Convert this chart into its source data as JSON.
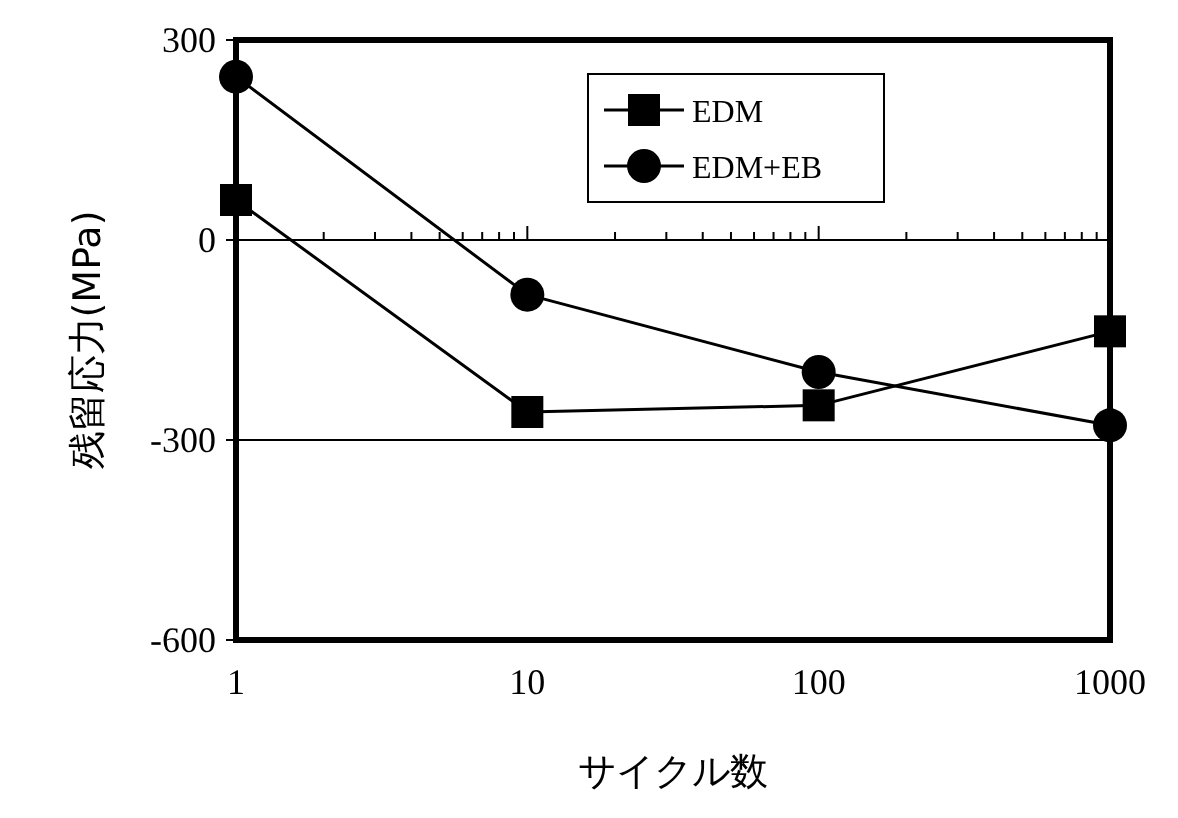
{
  "chart_data": {
    "type": "line",
    "xlabel": "サイクル数",
    "ylabel": "残留応力(MPa)",
    "log": "x",
    "x": [
      1,
      10,
      100,
      1000
    ],
    "xlim": [
      1,
      1000
    ],
    "xticks": [
      1,
      10,
      100,
      1000
    ],
    "ylim": [
      -600,
      300
    ],
    "yticks": [
      -600,
      -300,
      0,
      300
    ],
    "grid": "y",
    "legend": "top right",
    "line_style": "solid",
    "series": [
      {
        "name": "EDM",
        "color": "#000000",
        "marker": "square",
        "values": [
          60,
          -258,
          -248,
          -137
        ]
      },
      {
        "name": "EDM+EB",
        "color": "#000000",
        "marker": "circle",
        "values": [
          245,
          -82,
          -198,
          -278
        ]
      }
    ]
  }
}
